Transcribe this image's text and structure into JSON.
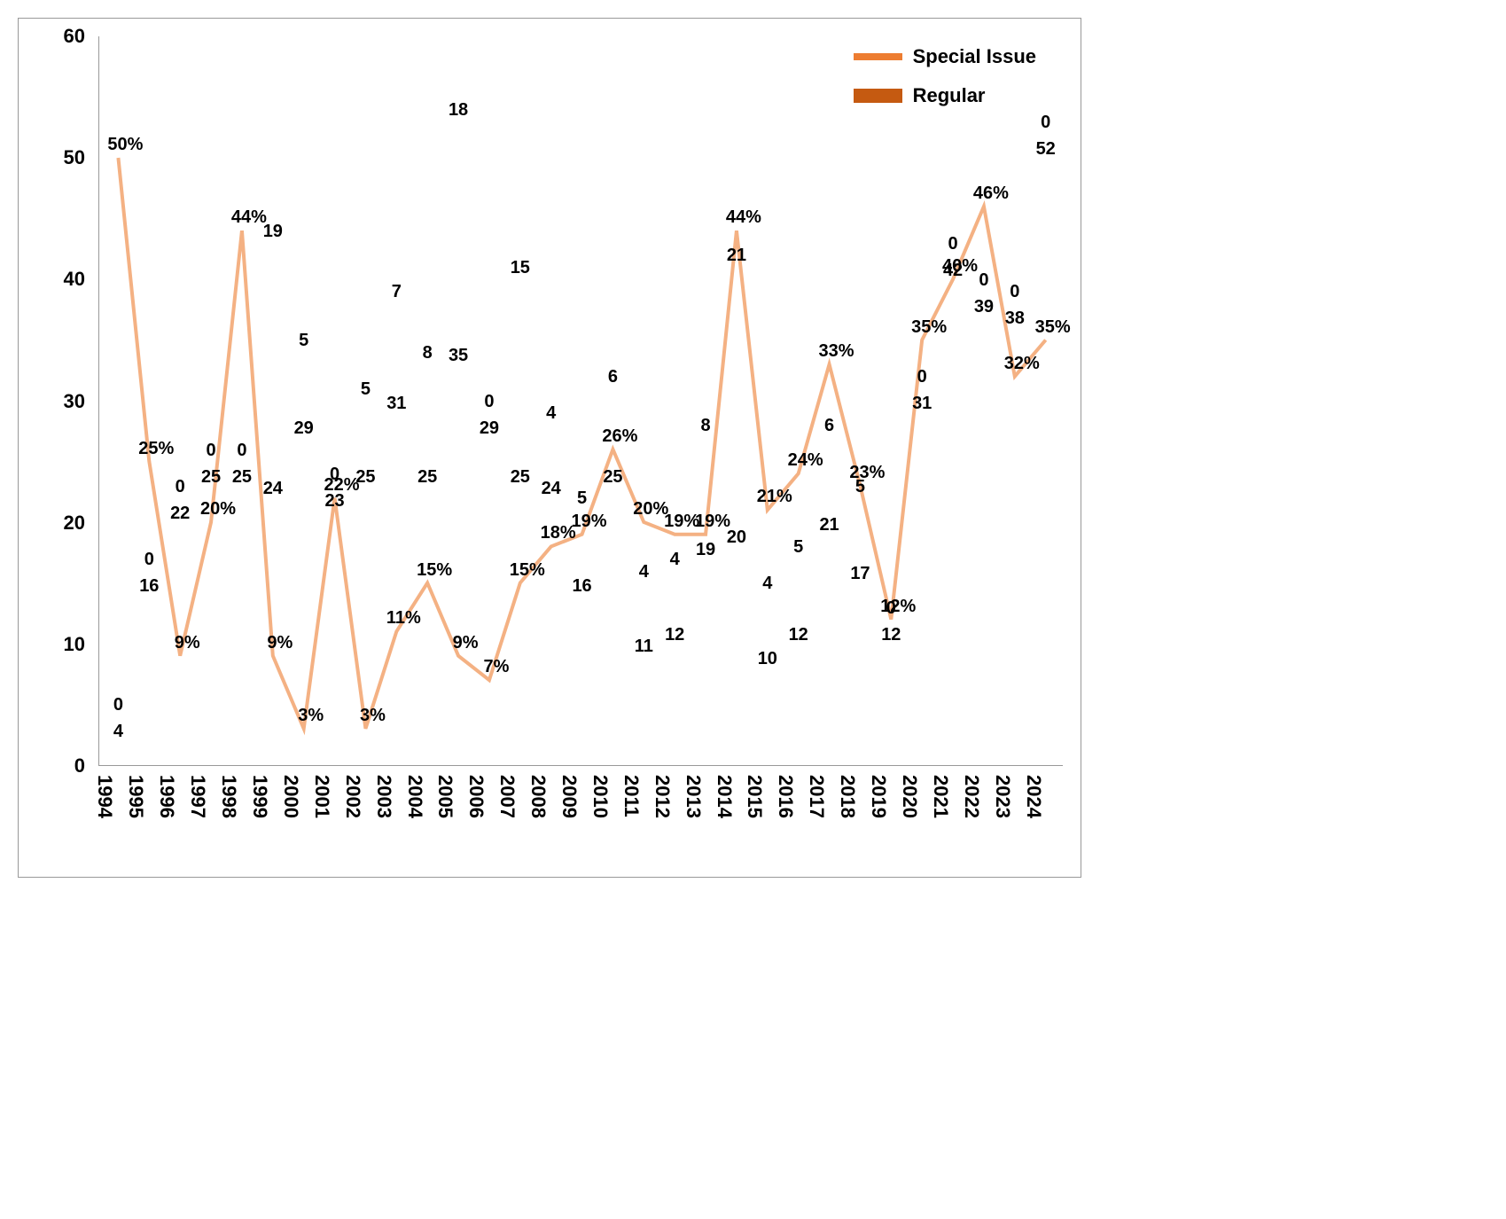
{
  "chart": {
    "type": "stacked-bar-with-line",
    "ylim": [
      0,
      60
    ],
    "ytick_step": 10,
    "yticks": [
      0,
      10,
      20,
      30,
      40,
      50,
      60
    ],
    "background_color": "#ffffff",
    "border_color": "#999999",
    "axis_fontsize": 22,
    "label_fontsize": 20,
    "label_fontweight": "bold",
    "colors": {
      "regular": "#c55a11",
      "special": "#ed7d31",
      "line": "#f4b183"
    },
    "line_width": 4,
    "legend": {
      "position": "top-right",
      "items": [
        {
          "key": "special",
          "label": "Special Issue",
          "color": "#ed7d31"
        },
        {
          "key": "regular",
          "label": "Regular",
          "color": "#c55a11"
        }
      ]
    },
    "categories": [
      "1994",
      "1995",
      "1996",
      "1997",
      "1998",
      "1999",
      "2000",
      "2001",
      "2002",
      "2003",
      "2004",
      "2005",
      "2006",
      "2007",
      "2008",
      "2009",
      "2010",
      "2011",
      "2012",
      "2013",
      "2014",
      "2015",
      "2016",
      "2017",
      "2018",
      "2019",
      "2020",
      "2021",
      "2022",
      "2023",
      "2024"
    ],
    "series": {
      "regular": [
        4,
        16,
        22,
        25,
        25,
        24,
        29,
        23,
        25,
        31,
        25,
        35,
        29,
        25,
        24,
        16,
        25,
        11,
        12,
        19,
        20,
        10,
        12,
        21,
        17,
        12,
        31,
        42,
        39,
        38,
        52
      ],
      "special": [
        0,
        0,
        0,
        0,
        0,
        19,
        5,
        0,
        5,
        7,
        8,
        18,
        0,
        15,
        4,
        5,
        6,
        4,
        4,
        8,
        21,
        4,
        5,
        6,
        5,
        0,
        0,
        0,
        0,
        0,
        0
      ],
      "percent": [
        50,
        25,
        9,
        20,
        44,
        9,
        3,
        22,
        3,
        11,
        15,
        9,
        7,
        15,
        18,
        19,
        26,
        20,
        19,
        19,
        44,
        21,
        24,
        33,
        23,
        12,
        35,
        40,
        46,
        32,
        35
      ]
    },
    "percent_scale_max": 60,
    "data_labels": {
      "regular": [
        "4",
        "16",
        "22",
        "25",
        "25",
        "24",
        "29",
        "23",
        "25",
        "31",
        "25",
        "35",
        "29",
        "25",
        "24",
        "16",
        "25",
        "11",
        "12",
        "19",
        "20",
        "10",
        "12",
        "21",
        "17",
        "12",
        "31",
        "42",
        "39",
        "38",
        "52"
      ],
      "special": [
        "0",
        "0",
        "0",
        "0",
        "0",
        "19",
        "5",
        "0",
        "5",
        "7",
        "8",
        "18",
        "0",
        "15",
        "4",
        "5",
        "6",
        "4",
        "4",
        "8",
        "21",
        "4",
        "5",
        "6",
        "5",
        "0",
        "0",
        "0",
        "0",
        "0",
        "0"
      ],
      "percent": [
        "50%",
        "25%",
        "9%",
        "20%",
        "44%",
        "9%",
        "3%",
        "22%",
        "3%",
        "11%",
        "15%",
        "9%",
        "7%",
        "15%",
        "18%",
        "19%",
        "26%",
        "20%",
        "19%",
        "19%",
        "44%",
        "21%",
        "24%",
        "33%",
        "23%",
        "12%",
        "35%",
        "40%",
        "46%",
        "32%",
        "35%"
      ]
    }
  }
}
